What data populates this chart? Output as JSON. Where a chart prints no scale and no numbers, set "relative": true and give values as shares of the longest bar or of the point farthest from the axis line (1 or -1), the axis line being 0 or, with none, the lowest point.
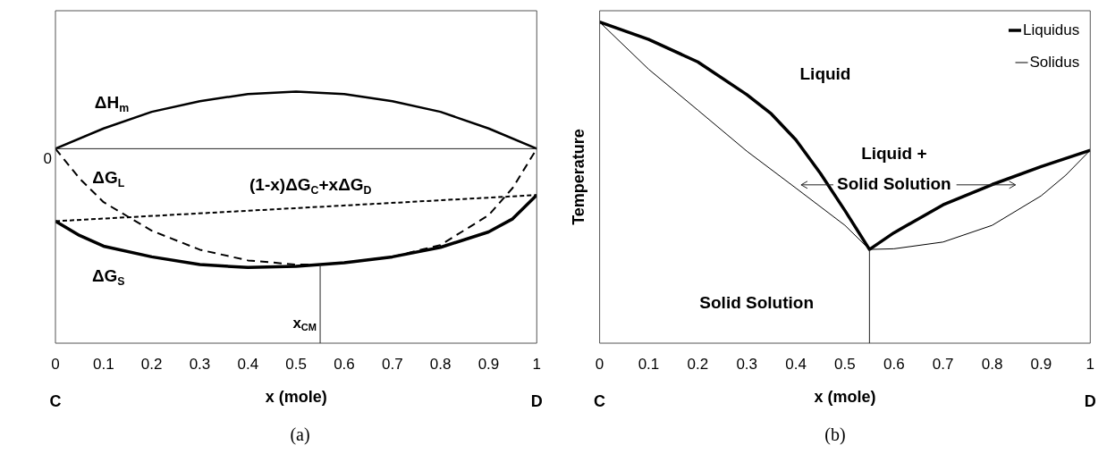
{
  "chart_data": [
    {
      "type": "line",
      "title": "(a)",
      "xlabel": "x (mole)",
      "relative": true,
      "xlim": [
        0,
        1
      ],
      "xticks": [
        0,
        0.1,
        0.2,
        0.3,
        0.4,
        0.5,
        0.6,
        0.7,
        0.8,
        0.9,
        1
      ],
      "series": [
        {
          "color": "#000000",
          "line_style": "solid",
          "x": [
            0,
            0.1,
            0.2,
            0.3,
            0.4,
            0.5,
            0.6,
            0.7,
            0.8,
            0.9,
            1
          ],
          "values": [
            0,
            0.17,
            0.31,
            0.4,
            0.46,
            0.48,
            0.46,
            0.4,
            0.31,
            0.17,
            0
          ]
        },
        {
          "color": "#000000",
          "line_style": "dashed",
          "x": [
            0,
            0.05,
            0.1,
            0.2,
            0.3,
            0.4,
            0.5,
            0.55,
            0.6,
            0.7,
            0.8,
            0.9,
            0.95,
            1
          ],
          "values": [
            0,
            -0.25,
            -0.45,
            -0.69,
            -0.85,
            -0.94,
            -0.975,
            -0.975,
            -0.96,
            -0.91,
            -0.81,
            -0.56,
            -0.33,
            0
          ]
        },
        {
          "color": "#000000",
          "line_style": "dotted",
          "x": [
            0,
            1
          ],
          "values": [
            -0.61,
            -0.39
          ]
        },
        {
          "color": "#000000",
          "line_style": "solid",
          "x": [
            0,
            0.05,
            0.1,
            0.2,
            0.3,
            0.4,
            0.5,
            0.55,
            0.6,
            0.7,
            0.8,
            0.9,
            0.95,
            1
          ],
          "values": [
            -0.61,
            -0.73,
            -0.82,
            -0.91,
            -0.975,
            -1,
            -0.99,
            -0.975,
            -0.96,
            -0.91,
            -0.83,
            -0.7,
            -0.59,
            -0.39
          ]
        }
      ],
      "ref_lines": [
        {
          "axis": "y",
          "value": 0
        },
        {
          "axis": "x",
          "value": 0.55,
          "label": "x$_{CM}$"
        }
      ],
      "annotations": [
        "ΔH$_{m}$",
        "ΔG$_{L}$",
        "(1-x)ΔG$_{C}$+xΔG$_{D}$",
        "ΔG$_{S}$",
        "0",
        "C",
        "D"
      ]
    },
    {
      "type": "line",
      "title": "(b)",
      "xlabel": "x (mole)",
      "ylabel": "Temperature",
      "relative": true,
      "xlim": [
        0,
        1
      ],
      "xticks": [
        0,
        0.1,
        0.2,
        0.3,
        0.4,
        0.5,
        0.6,
        0.7,
        0.8,
        0.9,
        1
      ],
      "legend": "top right",
      "series": [
        {
          "name": "Liquidus",
          "color": "#000000",
          "line_style": "solid",
          "x": [
            0,
            0.1,
            0.2,
            0.3,
            0.35,
            0.4,
            0.45,
            0.5,
            0.55,
            0.6,
            0.7,
            0.8,
            0.9,
            1
          ],
          "values": [
            1,
            0.946,
            0.876,
            0.774,
            0.714,
            0.633,
            0.529,
            0.413,
            0.292,
            0.344,
            0.431,
            0.494,
            0.55,
            0.601
          ]
        },
        {
          "name": "Solidus",
          "color": "#000000",
          "line_style": "solid",
          "x": [
            0,
            0.1,
            0.2,
            0.3,
            0.4,
            0.5,
            0.55,
            0.6,
            0.7,
            0.8,
            0.9,
            0.95,
            1
          ],
          "values": [
            1,
            0.853,
            0.726,
            0.598,
            0.483,
            0.367,
            0.292,
            0.294,
            0.315,
            0.367,
            0.459,
            0.523,
            0.601
          ]
        }
      ],
      "ref_lines": [
        {
          "axis": "x",
          "value": 0.55
        }
      ],
      "annotations": [
        "Liquid",
        "Liquid +\nSolid Solution",
        "Solid Solution",
        "C",
        "D"
      ]
    }
  ]
}
